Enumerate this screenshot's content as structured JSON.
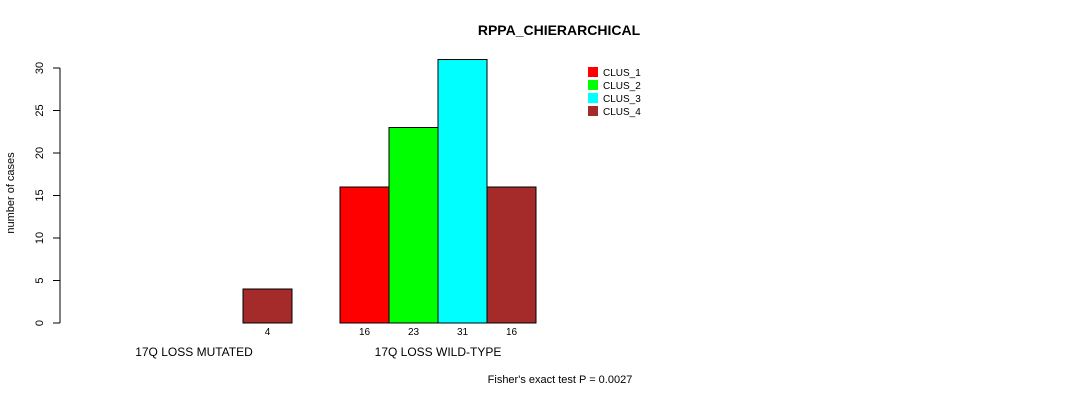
{
  "chart_data": {
    "type": "bar",
    "title": "RPPA_CHIERARCHICAL",
    "ylabel": "number of cases",
    "xlabel": "",
    "ylim": [
      0,
      30
    ],
    "yticks": [
      0,
      5,
      10,
      15,
      20,
      25,
      30
    ],
    "categories": [
      "17Q LOSS MUTATED",
      "17Q LOSS WILD-TYPE"
    ],
    "series": [
      {
        "name": "CLUS_1",
        "color": "#ff0000",
        "values": [
          0,
          16
        ]
      },
      {
        "name": "CLUS_2",
        "color": "#00ff00",
        "values": [
          0,
          23
        ]
      },
      {
        "name": "CLUS_3",
        "color": "#00ffff",
        "values": [
          0,
          31
        ]
      },
      {
        "name": "CLUS_4",
        "color": "#a52a2a",
        "values": [
          4,
          16
        ]
      }
    ],
    "bar_labels": [
      [
        "",
        "",
        "",
        "4"
      ],
      [
        "16",
        "23",
        "31",
        "16"
      ]
    ],
    "annotation": "Fisher's exact test P = 0.0027",
    "legend_position": "top-right"
  }
}
